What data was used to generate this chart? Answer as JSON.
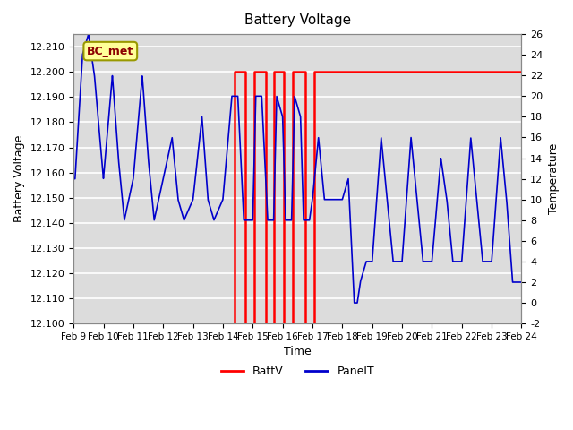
{
  "title": "Battery Voltage",
  "xlabel": "Time",
  "ylabel_left": "Battery Voltage",
  "ylabel_right": "Temperature",
  "annotation_text": "BC_met",
  "ylim_left": [
    12.1,
    12.215
  ],
  "ylim_right": [
    -2,
    26
  ],
  "yticks_left": [
    12.1,
    12.11,
    12.12,
    12.13,
    12.14,
    12.15,
    12.16,
    12.17,
    12.18,
    12.19,
    12.2,
    12.21
  ],
  "yticks_right": [
    -2,
    0,
    2,
    4,
    6,
    8,
    10,
    12,
    14,
    16,
    18,
    20,
    22,
    24,
    26
  ],
  "x_tick_labels": [
    "Feb 9",
    "Feb 10",
    "Feb 11",
    "Feb 12",
    "Feb 13",
    "Feb 14",
    "Feb 15",
    "Feb 16",
    "Feb 17",
    "Feb 18",
    "Feb 19",
    "Feb 20",
    "Feb 21",
    "Feb 22",
    "Feb 23",
    "Feb 24"
  ],
  "batt_color": "#FF0000",
  "panel_color": "#0000CC",
  "background_color": "#DCDCDC",
  "grid_color": "#FFFFFF",
  "legend_battv": "BattV",
  "legend_panelt": "PanelT",
  "batt_step_x": [
    0.0,
    5.4,
    5.4,
    5.75,
    5.75,
    6.05,
    6.05,
    6.45,
    6.45,
    6.72,
    6.72,
    7.05,
    7.05,
    7.35,
    7.35,
    7.75,
    7.75,
    8.05,
    8.05,
    15.0
  ],
  "batt_step_y": [
    12.1,
    12.1,
    12.2,
    12.2,
    12.1,
    12.1,
    12.2,
    12.2,
    12.1,
    12.1,
    12.2,
    12.2,
    12.1,
    12.1,
    12.2,
    12.2,
    12.1,
    12.1,
    12.2,
    12.2
  ],
  "panel_keypoints": [
    [
      0.0,
      12
    ],
    [
      0.05,
      12
    ],
    [
      0.3,
      24
    ],
    [
      0.5,
      26
    ],
    [
      0.7,
      22
    ],
    [
      1.0,
      12
    ],
    [
      1.3,
      22
    ],
    [
      1.5,
      14
    ],
    [
      1.7,
      8
    ],
    [
      2.0,
      12
    ],
    [
      2.3,
      22
    ],
    [
      2.5,
      14
    ],
    [
      2.7,
      8
    ],
    [
      3.0,
      12
    ],
    [
      3.3,
      16
    ],
    [
      3.5,
      10
    ],
    [
      3.7,
      8
    ],
    [
      4.0,
      10
    ],
    [
      4.3,
      18
    ],
    [
      4.5,
      10
    ],
    [
      4.7,
      8
    ],
    [
      5.0,
      10
    ],
    [
      5.3,
      20
    ],
    [
      5.5,
      20
    ],
    [
      5.7,
      8
    ],
    [
      6.0,
      8
    ],
    [
      6.1,
      20
    ],
    [
      6.3,
      20
    ],
    [
      6.5,
      8
    ],
    [
      6.7,
      8
    ],
    [
      6.8,
      20
    ],
    [
      7.0,
      18
    ],
    [
      7.1,
      8
    ],
    [
      7.3,
      8
    ],
    [
      7.4,
      20
    ],
    [
      7.6,
      18
    ],
    [
      7.7,
      8
    ],
    [
      7.9,
      8
    ],
    [
      8.0,
      10
    ],
    [
      8.2,
      16
    ],
    [
      8.4,
      10
    ],
    [
      8.6,
      10
    ],
    [
      9.0,
      10
    ],
    [
      9.2,
      12
    ],
    [
      9.4,
      0
    ],
    [
      9.5,
      0
    ],
    [
      9.6,
      2
    ],
    [
      9.8,
      4
    ],
    [
      10.0,
      4
    ],
    [
      10.3,
      16
    ],
    [
      10.5,
      10
    ],
    [
      10.7,
      4
    ],
    [
      11.0,
      4
    ],
    [
      11.3,
      16
    ],
    [
      11.5,
      10
    ],
    [
      11.7,
      4
    ],
    [
      12.0,
      4
    ],
    [
      12.3,
      14
    ],
    [
      12.5,
      10
    ],
    [
      12.7,
      4
    ],
    [
      13.0,
      4
    ],
    [
      13.3,
      16
    ],
    [
      13.5,
      10
    ],
    [
      13.7,
      4
    ],
    [
      14.0,
      4
    ],
    [
      14.3,
      16
    ],
    [
      14.5,
      10
    ],
    [
      14.7,
      2
    ],
    [
      15.0,
      2
    ]
  ]
}
